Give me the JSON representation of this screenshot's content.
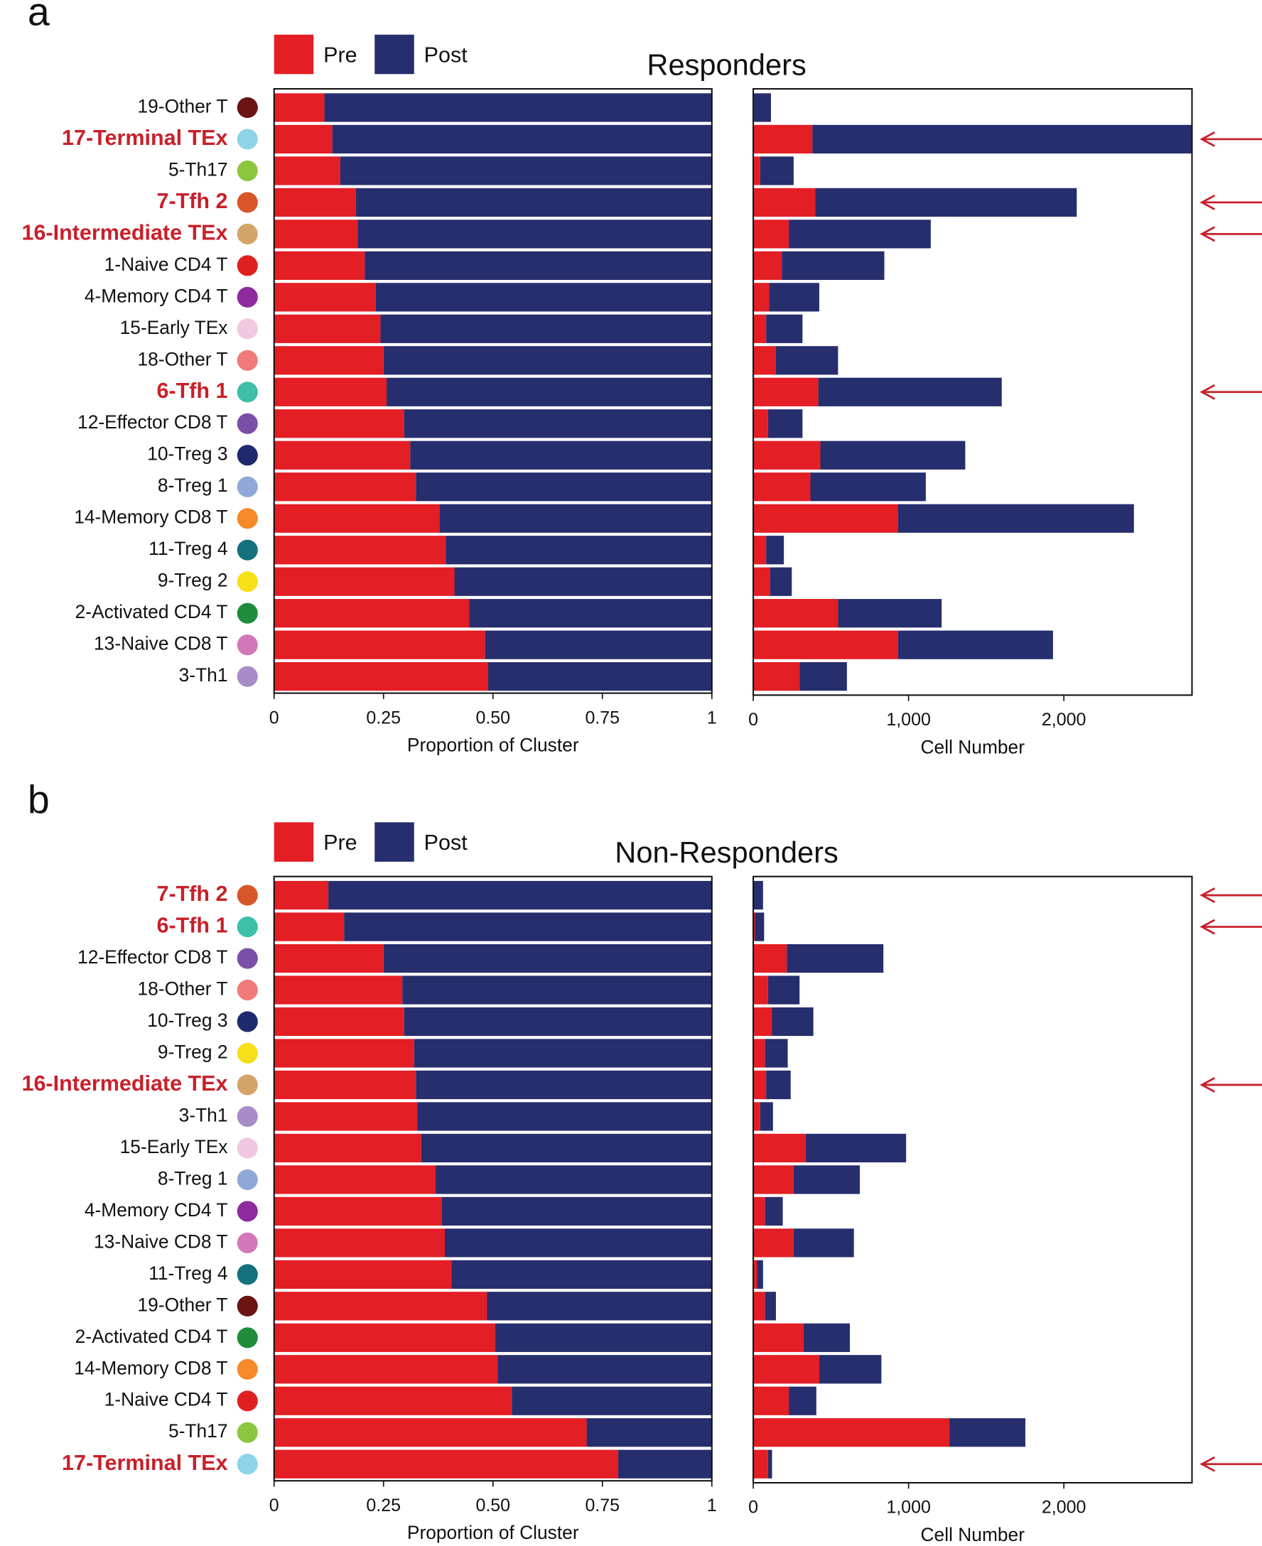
{
  "chart_data": [
    {
      "type": "bar",
      "orientation": "horizontal",
      "stacked": true,
      "panel": "a",
      "title": "Responders",
      "categories": [
        "19-Other T",
        "17-Terminal TEx",
        "5-Th17",
        "7-Tfh 2",
        "16-Intermediate TEx",
        "1-Naive CD4 T",
        "4-Memory CD4 T",
        "15-Early TEx",
        "18-Other T",
        "6-Tfh 1",
        "12-Effector CD8 T",
        "10-Treg 3",
        "8-Treg 1",
        "14-Memory CD8 T",
        "11-Treg 4",
        "9-Treg 2",
        "2-Activated CD4 T",
        "13-Naive CD8 T",
        "3-Th1"
      ],
      "category_colors": [
        "#6b1414",
        "#8fd3e8",
        "#8cc63f",
        "#d9562b",
        "#d4a56a",
        "#e02020",
        "#8e2a9e",
        "#f0c8e0",
        "#f27a7a",
        "#3dbfa8",
        "#7a4fa8",
        "#1f2a6e",
        "#8fa8d8",
        "#f48a2a",
        "#14707a",
        "#f5e01a",
        "#1e8c3c",
        "#d278b8",
        "#a88cc8"
      ],
      "highlighted": [
        false,
        true,
        false,
        true,
        true,
        false,
        false,
        false,
        false,
        true,
        false,
        false,
        false,
        false,
        false,
        false,
        false,
        false,
        false
      ],
      "series": [
        {
          "name": "Pre",
          "color": "#e31e24",
          "values": [
            0.115,
            0.133,
            0.151,
            0.187,
            0.191,
            0.207,
            0.232,
            0.243,
            0.25,
            0.257,
            0.297,
            0.311,
            0.324,
            0.378,
            0.392,
            0.412,
            0.446,
            0.482,
            0.489
          ]
        },
        {
          "name": "Post",
          "color": "#262e6e",
          "values": [
            0.885,
            0.867,
            0.849,
            0.813,
            0.809,
            0.793,
            0.768,
            0.757,
            0.75,
            0.743,
            0.703,
            0.689,
            0.676,
            0.622,
            0.608,
            0.588,
            0.554,
            0.518,
            0.511
          ]
        }
      ],
      "xlabel": "Proportion of Cluster",
      "xlim": [
        0,
        1
      ],
      "xticks": [
        0,
        0.25,
        {
          "value": 0.5,
          "label": "0.50"
        },
        0.75,
        1
      ]
    },
    {
      "type": "bar",
      "orientation": "horizontal",
      "stacked": true,
      "series": [
        {
          "color": "#e31e24",
          "values": [
            5,
            381,
            44,
            400,
            229,
            184,
            102,
            83,
            146,
            419,
            95,
            432,
            368,
            933,
            83,
            108,
            546,
            933,
            298
          ]
        },
        {
          "color": "#262e6e",
          "values": [
            109,
            2444,
            216,
            1683,
            914,
            660,
            323,
            234,
            400,
            1181,
            222,
            933,
            743,
            1518,
            114,
            140,
            667,
            997,
            305
          ]
        }
      ],
      "xlabel": "Cell Number",
      "xlim": [
        0,
        2825
      ],
      "xticks": [
        0,
        {
          "value": 1000,
          "label": "1,000"
        },
        {
          "value": 2000,
          "label": "2,000"
        }
      ]
    },
    {
      "type": "bar",
      "orientation": "horizontal",
      "stacked": true,
      "panel": "b",
      "title": "Non-Responders",
      "categories": [
        "7-Tfh 2",
        "6-Tfh 1",
        "12-Effector CD8 T",
        "18-Other T",
        "10-Treg 3",
        "9-Treg 2",
        "16-Intermediate TEx",
        "3-Th1",
        "15-Early TEx",
        "8-Treg 1",
        "4-Memory CD4 T",
        "13-Naive CD8 T",
        "11-Treg 4",
        "19-Other T",
        "2-Activated CD4 T",
        "14-Memory CD8 T",
        "1-Naive CD4 T",
        "5-Th17",
        "17-Terminal TEx"
      ],
      "category_colors": [
        "#d9562b",
        "#3dbfa8",
        "#7a4fa8",
        "#f27a7a",
        "#1f2a6e",
        "#f5e01a",
        "#d4a56a",
        "#a88cc8",
        "#f0c8e0",
        "#8fa8d8",
        "#8e2a9e",
        "#d278b8",
        "#14707a",
        "#6b1414",
        "#1e8c3c",
        "#f48a2a",
        "#e02020",
        "#8cc63f",
        "#8fd3e8"
      ],
      "highlighted": [
        true,
        true,
        false,
        false,
        false,
        false,
        true,
        false,
        false,
        false,
        false,
        false,
        false,
        false,
        false,
        false,
        false,
        false,
        true
      ],
      "series": [
        {
          "name": "Pre",
          "color": "#e31e24",
          "values": [
            0.124,
            0.16,
            0.25,
            0.293,
            0.297,
            0.32,
            0.324,
            0.327,
            0.336,
            0.369,
            0.383,
            0.39,
            0.405,
            0.486,
            0.505,
            0.511,
            0.543,
            0.714,
            0.786
          ]
        },
        {
          "name": "Post",
          "color": "#262e6e",
          "values": [
            0.876,
            0.84,
            0.75,
            0.707,
            0.703,
            0.68,
            0.676,
            0.673,
            0.664,
            0.631,
            0.617,
            0.61,
            0.595,
            0.514,
            0.495,
            0.489,
            0.457,
            0.286,
            0.214
          ]
        }
      ],
      "xlabel": "Proportion of Cluster",
      "xlim": [
        0,
        1
      ],
      "xticks": [
        0,
        0.25,
        {
          "value": 0.5,
          "label": "0.50"
        },
        0.75,
        1
      ]
    },
    {
      "type": "bar",
      "orientation": "horizontal",
      "stacked": true,
      "series": [
        {
          "color": "#e31e24",
          "values": [
            4,
            11,
            216,
            95,
            121,
            76,
            83,
            44,
            337,
            260,
            76,
            260,
            25,
            76,
            324,
            425,
            229,
            1263,
            95
          ]
        },
        {
          "color": "#262e6e",
          "values": [
            59,
            59,
            622,
            203,
            266,
            146,
            158,
            83,
            647,
            426,
            114,
            388,
            38,
            70,
            298,
            400,
            177,
            489,
            26
          ]
        }
      ],
      "xlabel": "Cell Number",
      "xlim": [
        0,
        2825
      ],
      "xticks": [
        0,
        {
          "value": 1000,
          "label": "1,000"
        },
        {
          "value": 2000,
          "label": "2,000"
        }
      ]
    }
  ]
}
